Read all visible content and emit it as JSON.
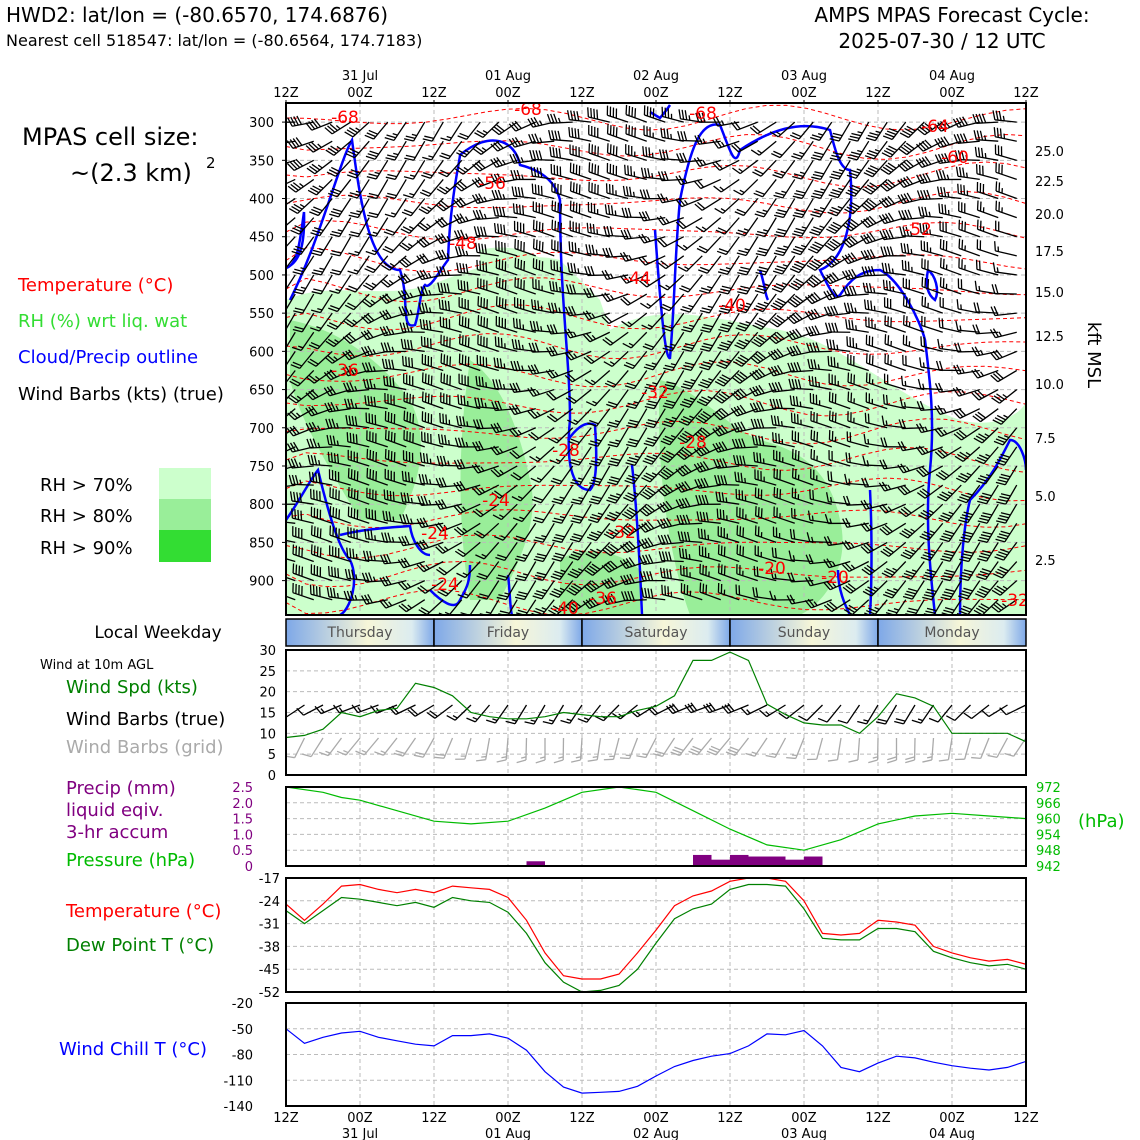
{
  "header": {
    "station_line": "HWD2: lat/lon = (-80.6570, 174.6876)",
    "cell_line": "Nearest cell 518547: lat/lon = (-80.6564, 174.7183)",
    "cycle_title": "AMPS MPAS Forecast Cycle:",
    "cycle_date": "2025-07-30 / 12 UTC"
  },
  "time_axis": {
    "ticks": [
      "12Z",
      "00Z",
      "12Z",
      "00Z",
      "12Z",
      "00Z",
      "12Z",
      "00Z",
      "12Z",
      "00Z",
      "12Z"
    ],
    "dates": [
      "31 Jul",
      "01 Aug",
      "02 Aug",
      "03 Aug",
      "04 Aug"
    ]
  },
  "legend": {
    "cell_size_title": "MPAS cell size:",
    "cell_size_value": "~(2.3 km)",
    "cell_size_exp": "2",
    "temperature": "Temperature (°C)",
    "rh": "RH (%) wrt liq. wat",
    "cloud": "Cloud/Precip outline",
    "barbs": "Wind Barbs (kts) (true)",
    "rh70": "RH > 70%",
    "rh80": "RH > 80%",
    "rh90": "RH > 90%"
  },
  "colors": {
    "temperature": "#ff0000",
    "rh_label": "#33dd33",
    "cloud": "#0000ff",
    "rh70": "#ccffcc",
    "rh80": "#99ee99",
    "rh90": "#33dd33",
    "wind_speed": "#008000",
    "precip": "#800080",
    "pressure": "#00bb00",
    "dewpoint": "#008000",
    "wind_chill": "#0000ff",
    "grid_barbs": "#aaaaaa"
  },
  "weekday": {
    "title": "Local Weekday",
    "days": [
      "Thursday",
      "Friday",
      "Saturday",
      "Sunday",
      "Monday"
    ]
  },
  "surface_wind": {
    "label_top": "Wind at 10m AGL",
    "label_speed": "Wind Spd (kts)",
    "label_barbs": "Wind Barbs (true)",
    "label_grid": "Wind Barbs (grid)"
  },
  "precip_panel": {
    "label1": "Precip (mm)",
    "label2": "liquid eqiv.",
    "label3": "3-hr accum",
    "label4": "Pressure (hPa)",
    "unit_right": "(hPa)"
  },
  "temp_panel": {
    "label_temp": "Temperature (°C)",
    "label_dew": "Dew Point T (°C)"
  },
  "chill_panel": {
    "label": "Wind Chill T (°C)"
  },
  "upper_axis": {
    "right_label": "kft MSL"
  },
  "chart_data": [
    {
      "type": "heatmap",
      "panel": "vertical cross-section (time-height)",
      "x_ticks": [
        "12Z",
        "00Z",
        "12Z",
        "00Z",
        "12Z",
        "00Z",
        "12Z",
        "00Z",
        "12Z",
        "00Z",
        "12Z"
      ],
      "x_range_hours": [
        0,
        120
      ],
      "y_left_ticks": [
        300,
        350,
        400,
        450,
        500,
        550,
        600,
        650,
        700,
        750,
        800,
        850,
        900
      ],
      "y_right_ticks": [
        "25.0",
        "22.5",
        "20.0",
        "17.5",
        "15.0",
        "12.5",
        "10.0",
        "7.5",
        "5.0",
        "2.5"
      ],
      "y_right_label": "kft MSL",
      "temperature_contour_labels": [
        "-68",
        "-68",
        "-68",
        "-64",
        "-60",
        "-56",
        "-52",
        "-48",
        "-44",
        "-40",
        "-36",
        "-32",
        "-28",
        "-28",
        "-24",
        "-24",
        "-32",
        "-20",
        "-20",
        "-24",
        "-40",
        "-36",
        "-32"
      ]
    },
    {
      "type": "line",
      "panel": "10m wind speed",
      "ylim": [
        0,
        30
      ],
      "yticks": [
        0,
        5,
        10,
        15,
        20,
        25,
        30
      ],
      "series": [
        {
          "name": "Wind Spd (kts)",
          "x_hours": [
            0,
            3,
            6,
            9,
            12,
            15,
            18,
            21,
            24,
            27,
            30,
            33,
            36,
            39,
            42,
            45,
            48,
            51,
            54,
            57,
            60,
            63,
            66,
            69,
            72,
            75,
            78,
            81,
            84,
            87,
            90,
            93,
            96,
            99,
            102,
            105,
            108,
            111,
            114,
            117,
            120
          ],
          "values": [
            9,
            9.5,
            11,
            15,
            14,
            15.5,
            16,
            22,
            21,
            19,
            15,
            14,
            13.5,
            13.5,
            14,
            15,
            14.5,
            14,
            14,
            15.5,
            16.5,
            19,
            27.5,
            27.5,
            29.5,
            27.5,
            17,
            14.5,
            12.5,
            12,
            12,
            10,
            14,
            19.5,
            18.5,
            16.5,
            10,
            10,
            10,
            10,
            8
          ]
        }
      ]
    },
    {
      "type": "line",
      "panel": "precipitation and pressure",
      "y_left_ticks": [
        "2.5",
        "2.0",
        "1.5",
        "1.0",
        "0.5",
        "0"
      ],
      "y_right_ticks": [
        "972",
        "966",
        "960",
        "954",
        "948",
        "942"
      ],
      "series": [
        {
          "name": "Pressure (hPa)",
          "x_hours": [
            0,
            6,
            9,
            12,
            18,
            24,
            30,
            36,
            42,
            48,
            54,
            60,
            66,
            72,
            78,
            84,
            90,
            96,
            102,
            108,
            114,
            120
          ],
          "values": [
            972,
            970,
            968,
            967,
            963,
            959,
            958,
            959,
            964,
            970,
            972,
            970,
            963,
            956,
            950,
            948,
            952,
            958,
            961,
            962,
            961,
            960
          ]
        },
        {
          "name": "Precip (mm)",
          "x_hours": [
            40.5,
            67.5,
            70.5,
            73.5,
            76.5,
            79.5,
            82.5,
            85.5
          ],
          "values": [
            0.15,
            0.35,
            0.2,
            0.35,
            0.3,
            0.3,
            0.2,
            0.3
          ]
        }
      ]
    },
    {
      "type": "line",
      "panel": "temperature and dew point",
      "ylim": [
        -52,
        -17
      ],
      "yticks": [
        -17,
        -24,
        -31,
        -38,
        -45,
        -52
      ],
      "series": [
        {
          "name": "Temperature (°C)",
          "x_hours": [
            0,
            3,
            6,
            9,
            12,
            15,
            18,
            21,
            24,
            27,
            30,
            33,
            36,
            39,
            42,
            45,
            48,
            51,
            54,
            57,
            60,
            63,
            66,
            69,
            72,
            75,
            78,
            81,
            84,
            87,
            90,
            93,
            96,
            99,
            102,
            105,
            108,
            111,
            114,
            117,
            120
          ],
          "values": [
            -25,
            -30,
            -25,
            -19.5,
            -19,
            -20.5,
            -21.5,
            -20.5,
            -21.5,
            -19.5,
            -20,
            -20.5,
            -23,
            -30,
            -40,
            -47,
            -48,
            -48,
            -46.5,
            -40,
            -33,
            -25.5,
            -22.5,
            -21,
            -18,
            -17,
            -17,
            -18,
            -24,
            -34,
            -34.5,
            -34,
            -30,
            -30.5,
            -31.5,
            -38,
            -40,
            -41.5,
            -42.5,
            -42,
            -43.5
          ]
        },
        {
          "name": "Dew Point T (°C)",
          "x_hours": [
            0,
            3,
            6,
            9,
            12,
            15,
            18,
            21,
            24,
            27,
            30,
            33,
            36,
            39,
            42,
            45,
            48,
            51,
            54,
            57,
            60,
            63,
            66,
            69,
            72,
            75,
            78,
            81,
            84,
            87,
            90,
            93,
            96,
            99,
            102,
            105,
            108,
            111,
            114,
            117,
            120
          ],
          "values": [
            -27,
            -31,
            -27,
            -23,
            -23.5,
            -24.5,
            -25.5,
            -24.5,
            -26,
            -23,
            -24,
            -24.5,
            -27.5,
            -34,
            -43,
            -49,
            -52,
            -51.5,
            -50,
            -45,
            -37,
            -29.5,
            -26.5,
            -25,
            -20.5,
            -19,
            -19,
            -19.5,
            -26.5,
            -35.5,
            -36,
            -36,
            -32.5,
            -32.5,
            -33.5,
            -39.5,
            -41.5,
            -43,
            -44,
            -43.5,
            -45
          ]
        }
      ]
    },
    {
      "type": "line",
      "panel": "wind chill",
      "ylim": [
        -140,
        -20
      ],
      "yticks": [
        -20,
        -50,
        -80,
        -110,
        -140
      ],
      "series": [
        {
          "name": "Wind Chill T (°C)",
          "x_hours": [
            0,
            3,
            6,
            9,
            12,
            15,
            18,
            21,
            24,
            27,
            30,
            33,
            36,
            39,
            42,
            45,
            48,
            51,
            54,
            57,
            60,
            63,
            66,
            69,
            72,
            75,
            78,
            81,
            84,
            87,
            90,
            93,
            96,
            99,
            102,
            105,
            108,
            111,
            114,
            117,
            120
          ],
          "values": [
            -50,
            -67,
            -60,
            -55,
            -53,
            -60,
            -64,
            -68,
            -70,
            -58,
            -58,
            -56,
            -61,
            -75,
            -100,
            -118,
            -125,
            -124,
            -123,
            -117,
            -105,
            -94,
            -87,
            -82,
            -79,
            -70,
            -56,
            -57,
            -52,
            -70,
            -95,
            -100,
            -90,
            -82,
            -84,
            -89,
            -93,
            -96,
            -98,
            -95,
            -88
          ]
        }
      ]
    }
  ]
}
